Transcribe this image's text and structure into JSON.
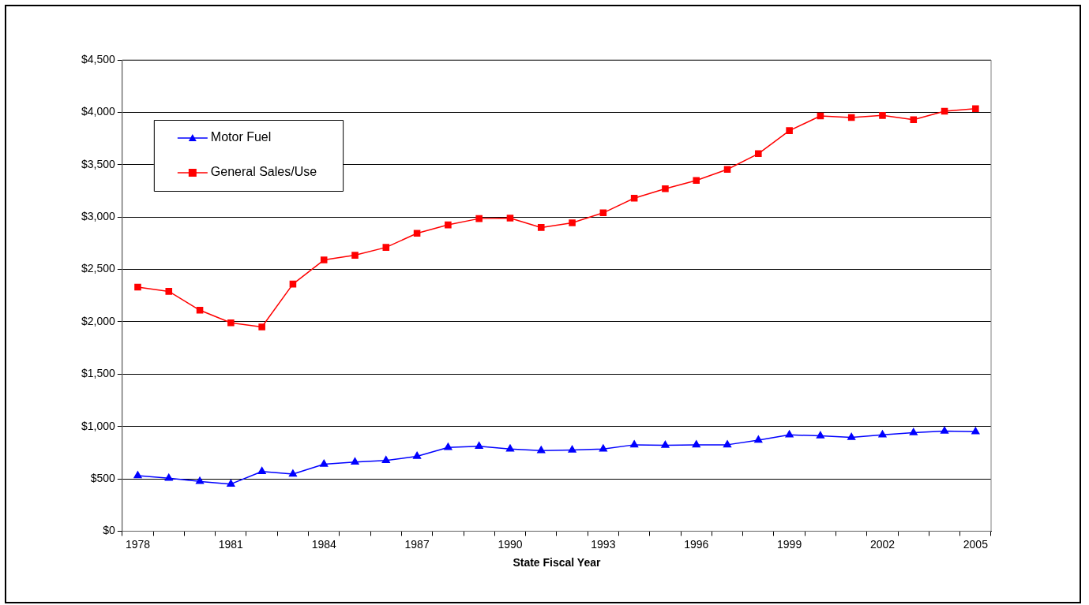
{
  "chart_data": {
    "type": "line",
    "xlabel": "State Fiscal Year",
    "categories": [
      "1978",
      null,
      null,
      "1981",
      null,
      null,
      "1984",
      null,
      null,
      "1987",
      null,
      null,
      "1990",
      null,
      null,
      "1993",
      null,
      null,
      "1996",
      null,
      null,
      "1999",
      null,
      null,
      "2002",
      null,
      null,
      "2005"
    ],
    "series": [
      {
        "name": "Motor Fuel",
        "color": "#0000ff",
        "marker": "triangle",
        "values": [
          530,
          505,
          475,
          450,
          570,
          545,
          640,
          660,
          675,
          715,
          800,
          810,
          785,
          770,
          775,
          785,
          825,
          820,
          825,
          825,
          870,
          920,
          910,
          895,
          920,
          940,
          955,
          950
        ]
      },
      {
        "name": "General Sales/Use",
        "color": "#ff0000",
        "marker": "square",
        "values": [
          2330,
          2290,
          2110,
          1990,
          1950,
          2360,
          2590,
          2635,
          2710,
          2845,
          2925,
          2985,
          2990,
          2900,
          2945,
          3040,
          3180,
          3270,
          3350,
          3455,
          3605,
          3825,
          3965,
          3950,
          3970,
          3930,
          4010,
          4035
        ]
      }
    ],
    "ylim": [
      0,
      4500
    ],
    "yticks": [
      {
        "value": 0,
        "label": "$0"
      },
      {
        "value": 500,
        "label": "$500"
      },
      {
        "value": 1000,
        "label": "$1,000"
      },
      {
        "value": 1500,
        "label": "$1,500"
      },
      {
        "value": 2000,
        "label": "$2,000"
      },
      {
        "value": 2500,
        "label": "$2,500"
      },
      {
        "value": 3000,
        "label": "$3,000"
      },
      {
        "value": 3500,
        "label": "$3,500"
      },
      {
        "value": 4000,
        "label": "$4,000"
      },
      {
        "value": 4500,
        "label": "$4,500"
      }
    ],
    "grid": "y",
    "legend": "top left"
  }
}
